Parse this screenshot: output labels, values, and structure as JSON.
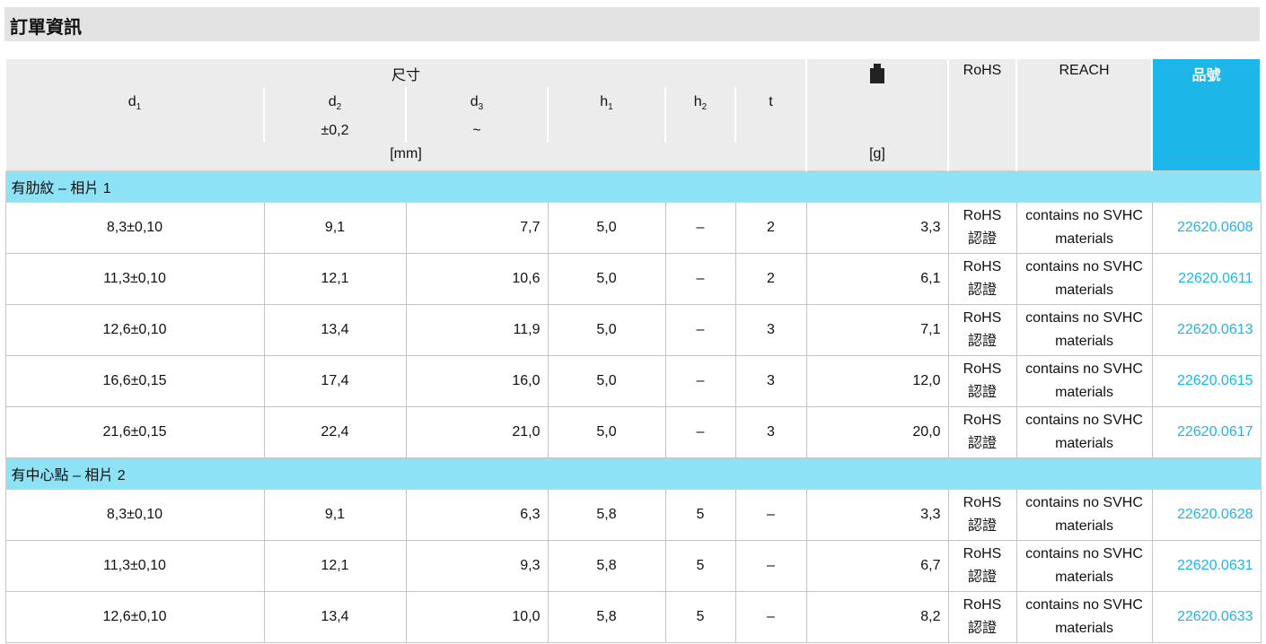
{
  "title": "訂單資訊",
  "table": {
    "header": {
      "group": "尺寸",
      "columns": [
        {
          "name": "d",
          "sub": "1"
        },
        {
          "name": "d",
          "sub": "2",
          "note": "±0,2"
        },
        {
          "name": "d",
          "sub": "3",
          "note": "~"
        },
        {
          "name": "h",
          "sub": "1"
        },
        {
          "name": "h",
          "sub": "2"
        },
        {
          "name": "t"
        }
      ],
      "unit_mm": "[mm]",
      "unit_g": "[g]",
      "rohs": "RoHS",
      "reach": "REACH",
      "part_no": "品號"
    },
    "groups": [
      {
        "label": "有肋紋 – 相片 1",
        "rows": [
          {
            "cells": [
              "8,3±0,10",
              "9,1",
              "7,7",
              "5,0",
              "–",
              "2",
              "3,3"
            ],
            "rohs": [
              "RoHS",
              "認證"
            ],
            "reach": "contains no SVHC materials",
            "part_no": "22620.0608"
          },
          {
            "cells": [
              "11,3±0,10",
              "12,1",
              "10,6",
              "5,0",
              "–",
              "2",
              "6,1"
            ],
            "rohs": [
              "RoHS",
              "認證"
            ],
            "reach": "contains no SVHC materials",
            "part_no": "22620.0611"
          },
          {
            "cells": [
              "12,6±0,10",
              "13,4",
              "11,9",
              "5,0",
              "–",
              "3",
              "7,1"
            ],
            "rohs": [
              "RoHS",
              "認證"
            ],
            "reach": "contains no SVHC materials",
            "part_no": "22620.0613"
          },
          {
            "cells": [
              "16,6±0,15",
              "17,4",
              "16,0",
              "5,0",
              "–",
              "3",
              "12,0"
            ],
            "rohs": [
              "RoHS",
              "認證"
            ],
            "reach": "contains no SVHC materials",
            "part_no": "22620.0615"
          },
          {
            "cells": [
              "21,6±0,15",
              "22,4",
              "21,0",
              "5,0",
              "–",
              "3",
              "20,0"
            ],
            "rohs": [
              "RoHS",
              "認證"
            ],
            "reach": "contains no SVHC materials",
            "part_no": "22620.0617"
          }
        ]
      },
      {
        "label": "有中心點 – 相片 2",
        "rows": [
          {
            "cells": [
              "8,3±0,10",
              "9,1",
              "6,3",
              "5,8",
              "5",
              "–",
              "3,3"
            ],
            "rohs": [
              "RoHS",
              "認證"
            ],
            "reach": "contains no SVHC materials",
            "part_no": "22620.0628"
          },
          {
            "cells": [
              "11,3±0,10",
              "12,1",
              "9,3",
              "5,8",
              "5",
              "–",
              "6,7"
            ],
            "rohs": [
              "RoHS",
              "認證"
            ],
            "reach": "contains no SVHC materials",
            "part_no": "22620.0631"
          },
          {
            "cells": [
              "12,6±0,10",
              "13,4",
              "10,0",
              "5,8",
              "5",
              "–",
              "8,2"
            ],
            "rohs": [
              "RoHS",
              "認證"
            ],
            "reach": "contains no SVHC materials",
            "part_no": "22620.0633"
          }
        ]
      }
    ]
  }
}
